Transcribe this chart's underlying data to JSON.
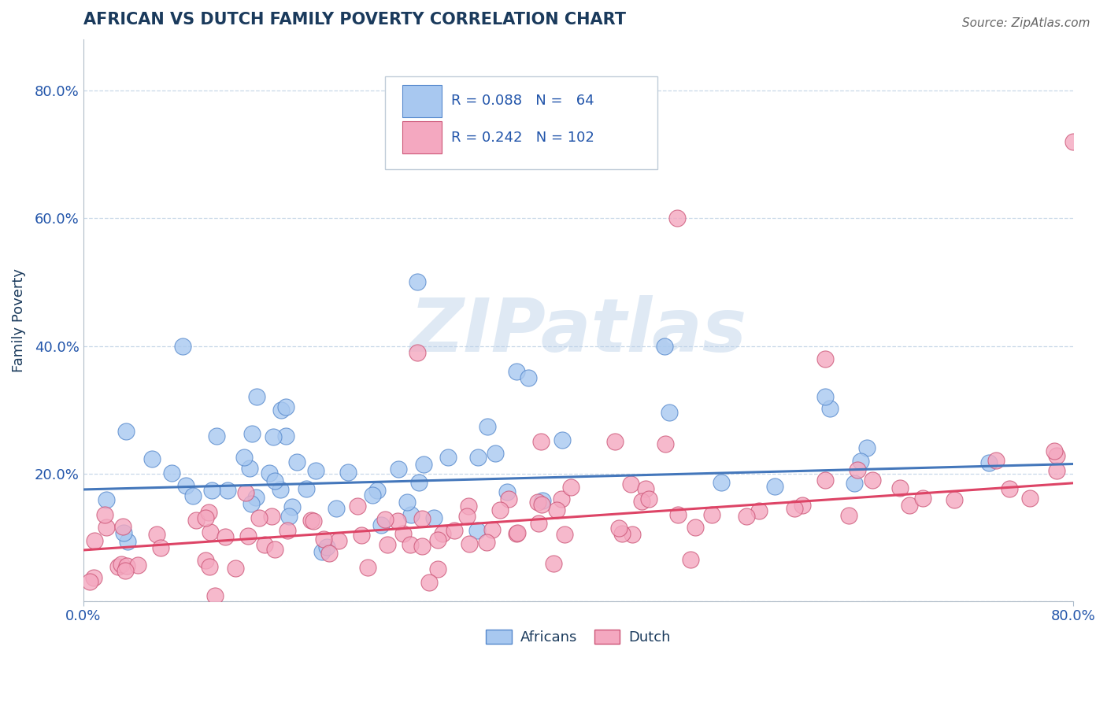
{
  "title": "AFRICAN VS DUTCH FAMILY POVERTY CORRELATION CHART",
  "source": "Source: ZipAtlas.com",
  "ylabel": "Family Poverty",
  "xlim": [
    0.0,
    0.8
  ],
  "ylim": [
    0.0,
    0.88
  ],
  "african_color": "#a8c8f0",
  "dutch_color": "#f4a8c0",
  "african_edge": "#5588cc",
  "dutch_edge": "#cc5577",
  "line_african": "#4477bb",
  "line_dutch": "#dd4466",
  "watermark": "ZIPatlas",
  "title_color": "#1a3a5c",
  "axis_color": "#2255aa",
  "grid_color": "#c8d8e8",
  "african_R": 0.088,
  "african_N": 64,
  "dutch_R": 0.242,
  "dutch_N": 102
}
